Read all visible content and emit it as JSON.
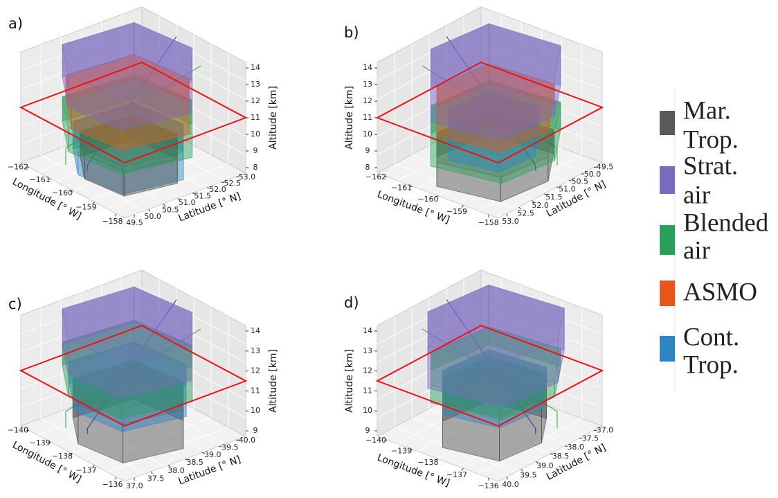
{
  "panels": [
    {
      "label": "a)",
      "front_left_axis": {
        "label": "Longitude [° W]",
        "ticks": [
          "−162",
          "−161",
          "−160",
          "−159",
          "−158"
        ]
      },
      "front_right_axis": {
        "label": "Latitude [° N]",
        "ticks": [
          "49.5",
          "50.0",
          "50.5",
          "51.0",
          "51.5",
          "52.0",
          "52.5",
          "53.0"
        ]
      },
      "vertical_axis": {
        "label": "Altitude [km]",
        "ticks": [
          "8",
          "9",
          "10",
          "11",
          "12",
          "13",
          "14"
        ]
      }
    },
    {
      "label": "b)",
      "front_left_axis": {
        "label": "Latitude [° N]",
        "ticks": [
          "49.5",
          "50.0",
          "50.5",
          "51.0",
          "51.5",
          "52.0",
          "52.5",
          "53.0"
        ]
      },
      "front_right_axis": {
        "label": "Longitude [° W]",
        "ticks": [
          "−158",
          "−159",
          "−160",
          "−161",
          "−162"
        ]
      },
      "vertical_axis": {
        "label": "Altitude [km]",
        "ticks": [
          "8",
          "9",
          "10",
          "11",
          "12",
          "13",
          "14"
        ]
      }
    },
    {
      "label": "c)",
      "front_left_axis": {
        "label": "Longitude [° W]",
        "ticks": [
          "−140",
          "−139",
          "−138",
          "−137",
          "−136"
        ]
      },
      "front_right_axis": {
        "label": "Latitude [° N]",
        "ticks": [
          "37.0",
          "37.5",
          "38.0",
          "38.5",
          "39.0",
          "39.5",
          "40.0"
        ]
      },
      "vertical_axis": {
        "label": "Altitude [km]",
        "ticks": [
          "9",
          "10",
          "11",
          "12",
          "13",
          "14"
        ]
      }
    },
    {
      "label": "d)",
      "front_left_axis": {
        "label": "Latitude [° N]",
        "ticks": [
          "37.0",
          "37.5",
          "38.0",
          "38.5",
          "39.0",
          "39.5",
          "40.0"
        ]
      },
      "front_right_axis": {
        "label": "Longitude [° W]",
        "ticks": [
          "−136",
          "−137",
          "−138",
          "−139",
          "−140"
        ]
      },
      "vertical_axis": {
        "label": "Altitude [km]",
        "ticks": [
          "9",
          "10",
          "11",
          "12",
          "13",
          "14"
        ]
      }
    }
  ],
  "legend": [
    {
      "lines": [
        "Mar.",
        "Trop."
      ],
      "color": "#5a5a5a"
    },
    {
      "lines": [
        "Strat.",
        "air"
      ],
      "color": "#7b6bbf"
    },
    {
      "lines": [
        "Blended",
        "air"
      ],
      "color": "#2ca05a"
    },
    {
      "lines": [
        "ASMO"
      ],
      "color": "#e8561c"
    },
    {
      "lines": [
        "Cont.",
        "Trop."
      ],
      "color": "#2f84c4"
    }
  ]
}
